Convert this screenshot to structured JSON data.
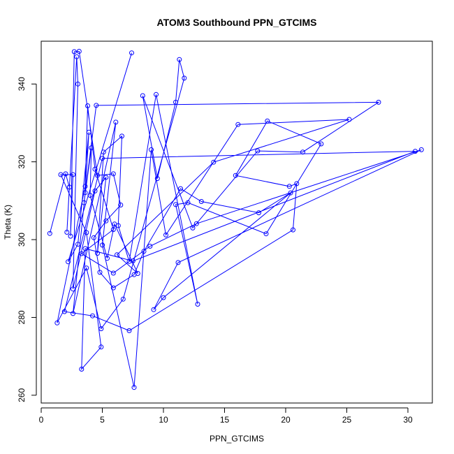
{
  "chart_data": {
    "type": "line",
    "title": "ATOM3 Southbound PPN_GTCIMS",
    "xlabel": "PPN_GTCIMS",
    "ylabel": "Theta (K)",
    "xlim": [
      0,
      32
    ],
    "ylim": [
      258,
      351
    ],
    "xticks": [
      0,
      5,
      10,
      15,
      20,
      25,
      30
    ],
    "yticks": [
      260,
      280,
      300,
      320,
      340
    ],
    "grid": false,
    "legend": "none",
    "series": [
      {
        "color": "#0000ff",
        "marker": "open-circle",
        "points": [
          [
            0.7,
            301.6
          ],
          [
            2.0,
            316.9
          ],
          [
            2.3,
            313.5
          ],
          [
            2.1,
            301.9
          ],
          [
            2.9,
            347.0
          ],
          [
            3.0,
            340.0
          ],
          [
            2.6,
            287.3
          ],
          [
            4.4,
            312.5
          ],
          [
            5.3,
            316.0
          ],
          [
            4.6,
            296.5
          ],
          [
            5.1,
            322.5
          ],
          [
            6.6,
            326.6
          ],
          [
            6.3,
            303.6
          ],
          [
            7.2,
            294.4
          ],
          [
            9.4,
            337.3
          ],
          [
            12.8,
            283.4
          ],
          [
            11.0,
            309.0
          ],
          [
            12.0,
            309.5
          ],
          [
            18.4,
            301.5
          ],
          [
            22.9,
            324.6
          ],
          [
            18.5,
            330.5
          ],
          [
            15.9,
            316.5
          ],
          [
            20.3,
            313.7
          ],
          [
            20.9,
            314.4
          ],
          [
            20.6,
            302.5
          ],
          [
            7.2,
            276.6
          ],
          [
            4.2,
            280.4
          ],
          [
            1.9,
            281.5
          ],
          [
            5.0,
            320.9
          ],
          [
            30.6,
            322.7
          ],
          [
            7.5,
            294.5
          ],
          [
            3.6,
            297.7
          ],
          [
            3.3,
            266.7
          ],
          [
            4.9,
            272.4
          ],
          [
            3.7,
            301.8
          ],
          [
            1.6,
            316.7
          ],
          [
            2.6,
            316.7
          ],
          [
            2.4,
            300.9
          ],
          [
            2.7,
            348.3
          ],
          [
            3.1,
            348.4
          ],
          [
            4.6,
            316.5
          ],
          [
            5.9,
            316.9
          ],
          [
            6.5,
            308.9
          ],
          [
            5.3,
            304.8
          ],
          [
            4.3,
            300.5
          ],
          [
            4.8,
            291.6
          ],
          [
            5.9,
            287.6
          ],
          [
            7.6,
            291.0
          ],
          [
            8.4,
            297.0
          ],
          [
            11.4,
            313.1
          ],
          [
            13.1,
            309.8
          ],
          [
            17.8,
            306.9
          ],
          [
            20.4,
            312.0
          ],
          [
            10.0,
            285.1
          ],
          [
            9.2,
            282.0
          ],
          [
            11.2,
            294.1
          ],
          [
            31.1,
            323.1
          ],
          [
            12.7,
            304.1
          ],
          [
            8.9,
            298.3
          ],
          [
            5.9,
            291.4
          ],
          [
            3.3,
            296.4
          ],
          [
            5.9,
            302.6
          ],
          [
            4.4,
            318.1
          ],
          [
            3.8,
            334.4
          ],
          [
            3.6,
            313.7
          ],
          [
            1.3,
            278.6
          ],
          [
            3.7,
            292.7
          ],
          [
            4.9,
            277.1
          ],
          [
            6.7,
            284.7
          ],
          [
            11.7,
            341.5
          ],
          [
            11.3,
            346.3
          ],
          [
            11.0,
            335.3
          ],
          [
            9.5,
            315.7
          ],
          [
            8.3,
            337.0
          ],
          [
            12.4,
            303.0
          ],
          [
            17.7,
            322.8
          ],
          [
            21.4,
            322.5
          ],
          [
            27.6,
            335.3
          ],
          [
            4.5,
            334.5
          ],
          [
            3.5,
            309.5
          ],
          [
            4.1,
            323.6
          ],
          [
            4.0,
            311.4
          ],
          [
            5.4,
            295.2
          ],
          [
            6.0,
            304.0
          ],
          [
            7.9,
            291.3
          ],
          [
            6.2,
            296.1
          ],
          [
            14.1,
            319.9
          ],
          [
            25.2,
            330.9
          ],
          [
            16.1,
            329.6
          ],
          [
            10.2,
            301.2
          ],
          [
            9.0,
            323.1
          ],
          [
            7.6,
            262.0
          ],
          [
            5.0,
            298.6
          ],
          [
            6.1,
            330.2
          ],
          [
            2.6,
            281.0
          ],
          [
            3.6,
            312.1
          ],
          [
            3.9,
            327.6
          ],
          [
            3.0,
            298.8
          ],
          [
            2.2,
            294.3
          ],
          [
            7.4,
            348.0
          ]
        ]
      }
    ]
  }
}
